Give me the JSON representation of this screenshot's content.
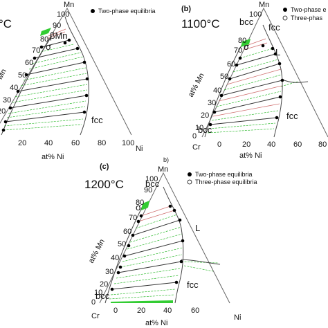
{
  "labels": {
    "at_pct_mn": "at% Mn",
    "at_pct_ni": "at% Ni",
    "mn": "Mn",
    "ni": "Ni",
    "cr": "Cr",
    "two_phase": "Two-phase equilibria",
    "three_phase": "Three-phase equilibria",
    "two_phase_cut": "Two-phase e",
    "three_phase_cut": "Three-phas",
    "fcc": "fcc",
    "bcc": "bcc",
    "sigma": "σ",
    "liquid": "L",
    "beta_mn": "βMn",
    "stray_b": "b)"
  },
  "panels": [
    {
      "panel": "",
      "temperature": "°C"
    },
    {
      "panel": "(b)",
      "temperature": "1100°C"
    },
    {
      "panel": "(c)",
      "temperature": "1200°C"
    }
  ],
  "ticks": {
    "mn_axis": [
      "0",
      "10",
      "20",
      "30",
      "40",
      "50",
      "60",
      "70",
      "80",
      "90",
      "100"
    ],
    "ni_axis_a": [
      "20",
      "40",
      "60",
      "80",
      "100"
    ],
    "ni_axis_b": [
      "0",
      "20",
      "40",
      "60",
      "80"
    ],
    "ni_axis_c": [
      "0",
      "20",
      "40",
      "60"
    ]
  },
  "colors": {
    "green_tie": "#33bb33",
    "black_tie": "#333333",
    "red_tie": "#d07070",
    "frame": "#666666"
  }
}
